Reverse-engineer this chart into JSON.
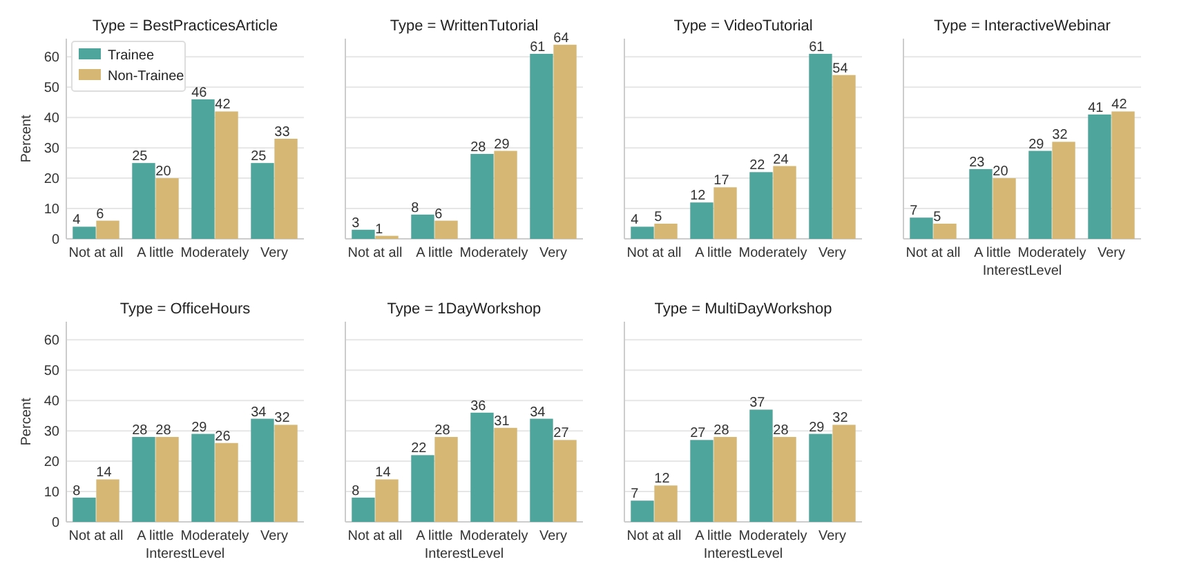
{
  "chart_data": [
    {
      "type": "bar",
      "title": "Type = BestPracticesArticle",
      "ylabel": "Percent",
      "categories": [
        "Not at all",
        "A little",
        "Moderately",
        "Very"
      ],
      "ylim": [
        0,
        66
      ],
      "yticks": [
        0,
        10,
        20,
        30,
        40,
        50,
        60
      ],
      "grid": "y",
      "legend": "top left",
      "data_labels": true,
      "series": [
        {
          "name": "Trainee",
          "color": "#4ea59b",
          "values": [
            4,
            25,
            46,
            25
          ]
        },
        {
          "name": "Non-Trainee",
          "color": "#d6b874",
          "values": [
            6,
            20,
            42,
            33
          ]
        }
      ]
    },
    {
      "type": "bar",
      "title": "Type = WrittenTutorial",
      "categories": [
        "Not at all",
        "A little",
        "Moderately",
        "Very"
      ],
      "ylim": [
        0,
        66
      ],
      "yticks": [
        0,
        10,
        20,
        30,
        40,
        50,
        60
      ],
      "grid": "y",
      "tick_labels": "x",
      "data_labels": true,
      "series": [
        {
          "color": "#4ea59b",
          "values": [
            3,
            8,
            28,
            61
          ]
        },
        {
          "color": "#d6b874",
          "values": [
            1,
            6,
            29,
            64
          ]
        }
      ]
    },
    {
      "type": "bar",
      "title": "Type = VideoTutorial",
      "categories": [
        "Not at all",
        "A little",
        "Moderately",
        "Very"
      ],
      "ylim": [
        0,
        66
      ],
      "yticks": [
        0,
        10,
        20,
        30,
        40,
        50,
        60
      ],
      "grid": "y",
      "tick_labels": "x",
      "data_labels": true,
      "series": [
        {
          "color": "#4ea59b",
          "values": [
            4,
            12,
            22,
            61
          ]
        },
        {
          "color": "#d6b874",
          "values": [
            5,
            17,
            24,
            54
          ]
        }
      ]
    },
    {
      "type": "bar",
      "title": "Type = InteractiveWebinar",
      "xlabel": "InterestLevel",
      "categories": [
        "Not at all",
        "A little",
        "Moderately",
        "Very"
      ],
      "ylim": [
        0,
        66
      ],
      "yticks": [
        0,
        10,
        20,
        30,
        40,
        50,
        60
      ],
      "grid": "y",
      "tick_labels": "x",
      "data_labels": true,
      "series": [
        {
          "color": "#4ea59b",
          "values": [
            7,
            23,
            29,
            41
          ]
        },
        {
          "color": "#d6b874",
          "values": [
            5,
            20,
            32,
            42
          ]
        }
      ]
    },
    {
      "type": "bar",
      "title": "Type = OfficeHours",
      "xlabel": "InterestLevel",
      "ylabel": "Percent",
      "categories": [
        "Not at all",
        "A little",
        "Moderately",
        "Very"
      ],
      "ylim": [
        0,
        66
      ],
      "yticks": [
        0,
        10,
        20,
        30,
        40,
        50,
        60
      ],
      "grid": "y",
      "data_labels": true,
      "series": [
        {
          "color": "#4ea59b",
          "values": [
            8,
            28,
            29,
            34
          ]
        },
        {
          "color": "#d6b874",
          "values": [
            14,
            28,
            26,
            32
          ]
        }
      ]
    },
    {
      "type": "bar",
      "title": "Type = 1DayWorkshop",
      "xlabel": "InterestLevel",
      "categories": [
        "Not at all",
        "A little",
        "Moderately",
        "Very"
      ],
      "ylim": [
        0,
        66
      ],
      "yticks": [
        0,
        10,
        20,
        30,
        40,
        50,
        60
      ],
      "grid": "y",
      "tick_labels": "x",
      "data_labels": true,
      "series": [
        {
          "color": "#4ea59b",
          "values": [
            8,
            22,
            36,
            34
          ]
        },
        {
          "color": "#d6b874",
          "values": [
            14,
            28,
            31,
            27
          ]
        }
      ]
    },
    {
      "type": "bar",
      "title": "Type = MultiDayWorkshop",
      "xlabel": "InterestLevel",
      "categories": [
        "Not at all",
        "A little",
        "Moderately",
        "Very"
      ],
      "ylim": [
        0,
        66
      ],
      "yticks": [
        0,
        10,
        20,
        30,
        40,
        50,
        60
      ],
      "grid": "y",
      "tick_labels": "x",
      "data_labels": true,
      "series": [
        {
          "color": "#4ea59b",
          "values": [
            7,
            27,
            37,
            29
          ]
        },
        {
          "color": "#d6b874",
          "values": [
            12,
            28,
            28,
            32
          ]
        }
      ]
    }
  ]
}
